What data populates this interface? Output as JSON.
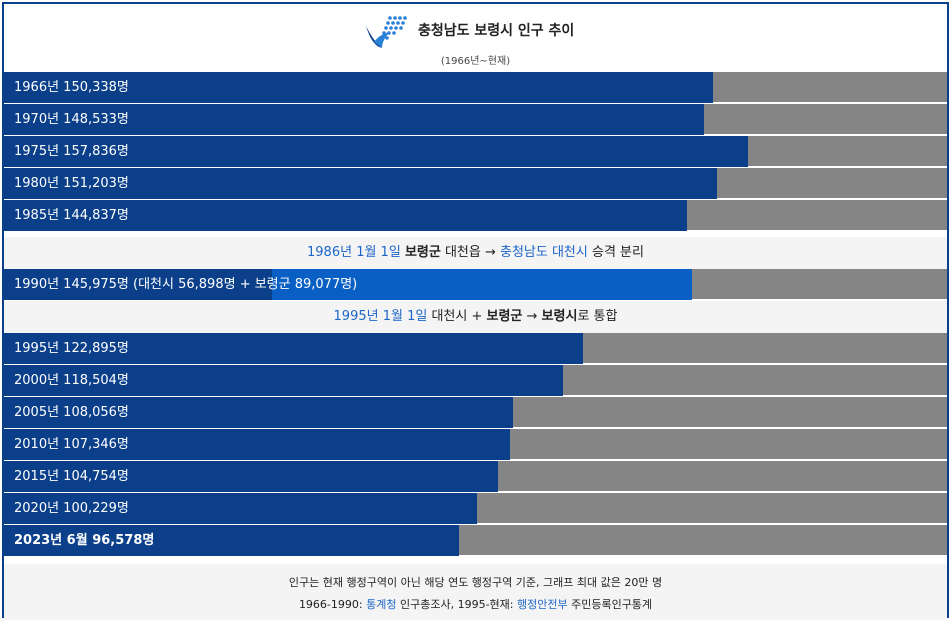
{
  "title": "충청남도 보령시 인구 추이",
  "subtitle": "(1966년~현재)",
  "colors": {
    "bar": "#0b3f8a",
    "bar_secondary": "#0a5fc4",
    "track": "#858585",
    "accent_text": "#1c66c8",
    "border": "#0b3f8a"
  },
  "logo_icon": "chungcheongnam-do-emblem-icon",
  "chart_data": {
    "type": "bar",
    "orientation": "horizontal",
    "title": "충청남도 보령시 인구 추이",
    "subtitle": "(1966년~현재)",
    "max": 200000,
    "rows_before": [
      {
        "label": "1966년 150,338명",
        "value": 150338
      },
      {
        "label": "1970년 148,533명",
        "value": 148533
      },
      {
        "label": "1975년 157,836명",
        "value": 157836
      },
      {
        "label": "1980년 151,203명",
        "value": 151203
      },
      {
        "label": "1985년 144,837명",
        "value": 144837
      }
    ],
    "note1": {
      "date": "1986년 1월 1일",
      "a": "보령군",
      "b": " 대천읍 → ",
      "c": "충청남도 대천시",
      "d": " 승격 분리"
    },
    "row_1990": {
      "label": "1990년 145,975명 (대천시 56,898명 + 보령군 89,077명)",
      "value": 145975,
      "parts": [
        56898,
        89077
      ]
    },
    "note2": {
      "date": "1995년 1월 1일",
      "a": " 대천시 + ",
      "b": "보령군",
      "c": " → ",
      "d": "보령시",
      "e": "로 통합"
    },
    "rows_after": [
      {
        "label": "1995년 122,895명",
        "value": 122895
      },
      {
        "label": "2000년 118,504명",
        "value": 118504
      },
      {
        "label": "2005년 108,056명",
        "value": 108056
      },
      {
        "label": "2010년 107,346명",
        "value": 107346
      },
      {
        "label": "2015년 104,754명",
        "value": 104754
      },
      {
        "label": "2020년 100,229명",
        "value": 100229
      },
      {
        "label": "2023년 6월 96,578명",
        "value": 96578,
        "bold": true
      }
    ]
  },
  "footer": {
    "line1": "인구는 현재 행정구역이 아닌 해당 연도 행정구역 기준, 그래프 최대 값은 20만 명",
    "line2_a": "1966-1990: ",
    "line2_link1": "통계청",
    "line2_b": " 인구총조사, 1995-현재: ",
    "line2_link2": "행정안전부",
    "line2_c": " 주민등록인구통계"
  }
}
